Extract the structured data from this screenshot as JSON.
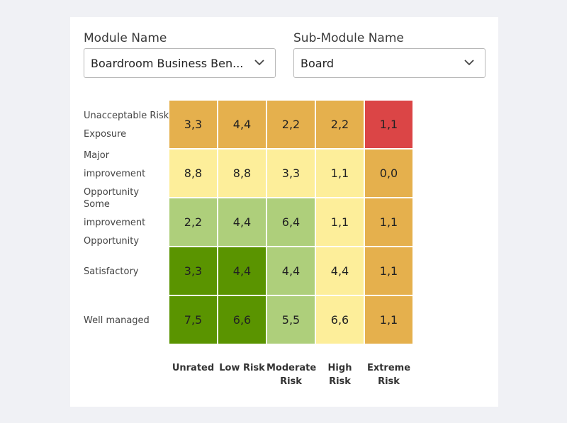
{
  "module": {
    "label": "Module Name",
    "value": "Boardroom Business Ben..."
  },
  "submodule": {
    "label": "Sub-Module Name",
    "value": "Board"
  },
  "icons": {
    "dropdown": "chevron-down-icon"
  },
  "colors": {
    "dark_green": "#5a9400",
    "light_green": "#aecf7b",
    "pale_yellow": "#fdee9a",
    "orange": "#e5b04d",
    "red": "#db4546"
  },
  "matrix": {
    "row_labels": [
      "Unacceptable Risk Exposure",
      "Major improvement Opportunity",
      "Some improvement Opportunity",
      "Satisfactory",
      "Well managed"
    ],
    "col_labels": [
      "Unrated",
      "Low Risk",
      "Moderate Risk",
      "High Risk",
      "Extreme Risk"
    ],
    "rows": [
      {
        "values": [
          "3,3",
          "4,4",
          "2,2",
          "2,2",
          "1,1"
        ],
        "colors": [
          "#e5b04d",
          "#e5b04d",
          "#e5b04d",
          "#e5b04d",
          "#db4546"
        ]
      },
      {
        "values": [
          "8,8",
          "8,8",
          "3,3",
          "1,1",
          "0,0"
        ],
        "colors": [
          "#fdee9a",
          "#fdee9a",
          "#fdee9a",
          "#fdee9a",
          "#e5b04d"
        ]
      },
      {
        "values": [
          "2,2",
          "4,4",
          "6,4",
          "1,1",
          "1,1"
        ],
        "colors": [
          "#aecf7b",
          "#aecf7b",
          "#aecf7b",
          "#fdee9a",
          "#e5b04d"
        ]
      },
      {
        "values": [
          "3,3",
          "4,4",
          "4,4",
          "4,4",
          "1,1"
        ],
        "colors": [
          "#5a9400",
          "#5a9400",
          "#aecf7b",
          "#fdee9a",
          "#e5b04d"
        ]
      },
      {
        "values": [
          "7,5",
          "6,6",
          "5,5",
          "6,6",
          "1,1"
        ],
        "colors": [
          "#5a9400",
          "#5a9400",
          "#aecf7b",
          "#fdee9a",
          "#e5b04d"
        ]
      }
    ]
  }
}
